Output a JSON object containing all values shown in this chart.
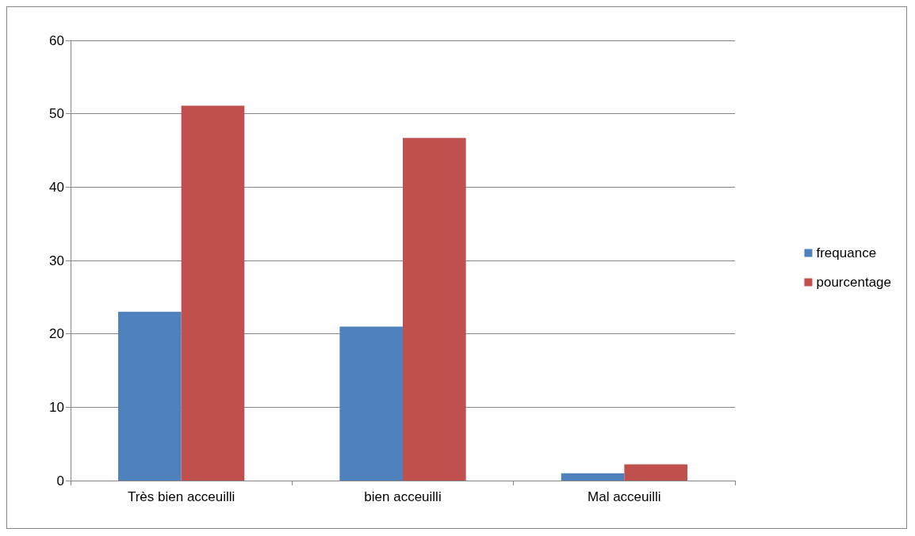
{
  "chart_data": {
    "type": "bar",
    "categories": [
      "Très bien acceuilli",
      "bien acceuilli",
      "Mal acceuilli"
    ],
    "series": [
      {
        "name": "frequance",
        "color": "#4f81bd",
        "values": [
          23,
          21,
          1
        ]
      },
      {
        "name": "pourcentage",
        "color": "#c0504d",
        "values": [
          51.1,
          46.7,
          2.2
        ]
      }
    ],
    "ylim": [
      0,
      60
    ],
    "yticks": [
      0,
      10,
      20,
      30,
      40,
      50,
      60
    ],
    "grid": "y",
    "legend": "right"
  }
}
